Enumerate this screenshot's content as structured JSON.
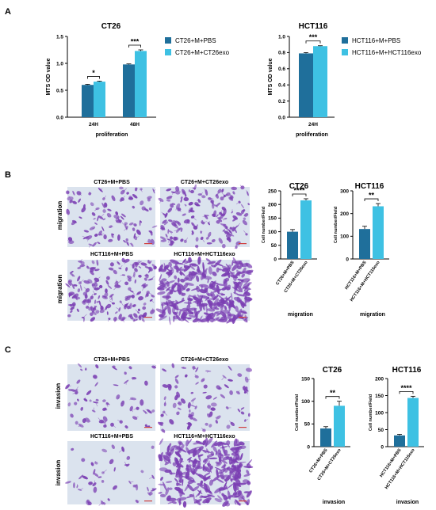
{
  "panels": {
    "A": {
      "letter": "A"
    },
    "B": {
      "letter": "B",
      "image_titles": [
        "CT26+M+PBS",
        "CT26+M+CT26exo",
        "HCT116+M+PBS",
        "HCT116+M+HCT116exo"
      ],
      "row_labels": [
        "migration",
        "migration"
      ]
    },
    "C": {
      "letter": "C",
      "image_titles": [
        "CT26+M+PBS",
        "CT26+M+CT26exo",
        "HCT116+M+PBS",
        "HCT116+M+HCT116exo"
      ],
      "row_labels": [
        "invasion",
        "invasion"
      ]
    }
  },
  "colors": {
    "dark": "#1f6f9b",
    "light": "#3ec1e3",
    "cells": "#7b3fb3",
    "bg_light": "#dbe3ee"
  },
  "chart_data": [
    {
      "id": "a1",
      "type": "bar",
      "title": "CT26",
      "xlabel": "proliferation",
      "ylabel": "MTS OD value",
      "categories": [
        "24H",
        "48H"
      ],
      "ylim": [
        0,
        1.5
      ],
      "yticks": [
        0.0,
        0.5,
        1.0,
        1.5
      ],
      "ytick_labels": [
        "0.0",
        "0.5",
        "1.0",
        "1.5"
      ],
      "series": [
        {
          "name": "CT26+M+PBS",
          "values": [
            0.6,
            0.98
          ],
          "errors": [
            0.01,
            0.01
          ]
        },
        {
          "name": "CT26+M+CT26exo",
          "values": [
            0.66,
            1.23
          ],
          "errors": [
            0.01,
            0.02
          ]
        }
      ],
      "significance": [
        "*",
        "***"
      ],
      "legend": "right"
    },
    {
      "id": "a2",
      "type": "bar",
      "title": "HCT116",
      "xlabel": "proliferation",
      "ylabel": "MTS OD value",
      "categories": [
        "24H"
      ],
      "ylim": [
        0,
        1.0
      ],
      "yticks": [
        0.0,
        0.2,
        0.4,
        0.6,
        0.8,
        1.0
      ],
      "ytick_labels": [
        "0.0",
        "0.2",
        "0.4",
        "0.6",
        "0.8",
        "1.0"
      ],
      "series": [
        {
          "name": "HCT116+M+PBS",
          "values": [
            0.79
          ],
          "errors": [
            0.01
          ]
        },
        {
          "name": "HCT116+M+HCT116exo",
          "values": [
            0.88
          ],
          "errors": [
            0.005
          ]
        }
      ],
      "significance": [
        "***"
      ],
      "legend": "right"
    },
    {
      "id": "b1",
      "type": "bar",
      "title": "CT26",
      "xlabel": "migration",
      "ylabel": "Cell number/Field",
      "categories": [
        "CT26+M+PBS",
        "CT26+M+CT26exo"
      ],
      "values": [
        100,
        215
      ],
      "errors": [
        8,
        6
      ],
      "ylim": [
        0,
        250
      ],
      "yticks": [
        0,
        50,
        100,
        150,
        200,
        250
      ],
      "ytick_labels": [
        "0",
        "50",
        "100",
        "150",
        "200",
        "250"
      ],
      "significance": "****"
    },
    {
      "id": "b2",
      "type": "bar",
      "title": "HCT116",
      "xlabel": "migration",
      "ylabel": "Cell number/Field",
      "categories": [
        "HCT116+M+PBS",
        "HCT116+M+HCT116exo"
      ],
      "values": [
        132,
        232
      ],
      "errors": [
        12,
        12
      ],
      "ylim": [
        0,
        300
      ],
      "yticks": [
        0,
        100,
        200,
        300
      ],
      "ytick_labels": [
        "0",
        "100",
        "200",
        "300"
      ],
      "significance": "**"
    },
    {
      "id": "c1",
      "type": "bar",
      "title": "CT26",
      "xlabel": "invasion",
      "ylabel": "Cell number/Field",
      "categories": [
        "CT26+M+PBS",
        "CT26+M+CT26exo"
      ],
      "values": [
        40,
        90
      ],
      "errors": [
        4,
        10
      ],
      "ylim": [
        0,
        150
      ],
      "yticks": [
        0,
        50,
        100,
        150
      ],
      "ytick_labels": [
        "0",
        "50",
        "100",
        "150"
      ],
      "significance": "**"
    },
    {
      "id": "c2",
      "type": "bar",
      "title": "HCT116",
      "xlabel": "invasion",
      "ylabel": "Cell number/Field",
      "categories": [
        "HCT116+M+PBS",
        "HCT116+M+HCT116exo"
      ],
      "values": [
        33,
        143
      ],
      "errors": [
        3,
        5
      ],
      "ylim": [
        0,
        200
      ],
      "yticks": [
        0,
        50,
        100,
        150,
        200
      ],
      "ytick_labels": [
        "0",
        "50",
        "100",
        "150",
        "200"
      ],
      "significance": "****"
    }
  ]
}
